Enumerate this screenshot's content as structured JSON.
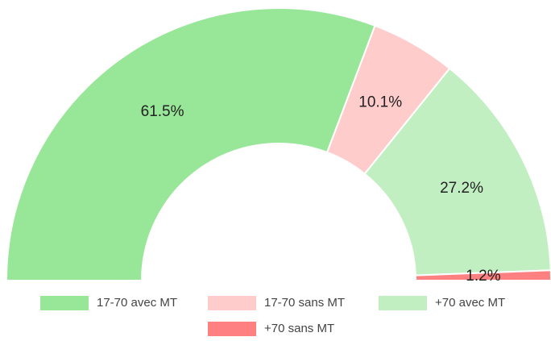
{
  "chart_data": {
    "type": "half-donut",
    "categories": [
      "17-70 avec MT",
      "17-70 sans MT",
      "+70 avec MT",
      "+70 sans MT"
    ],
    "values": [
      61.5,
      10.1,
      27.2,
      1.2
    ],
    "value_labels": [
      "61.5%",
      "10.1%",
      "27.2%",
      "1.2%"
    ],
    "colors": [
      "#98e698",
      "#ffcccc",
      "#c2efc2",
      "#ff8080"
    ],
    "legend": "bottom"
  }
}
